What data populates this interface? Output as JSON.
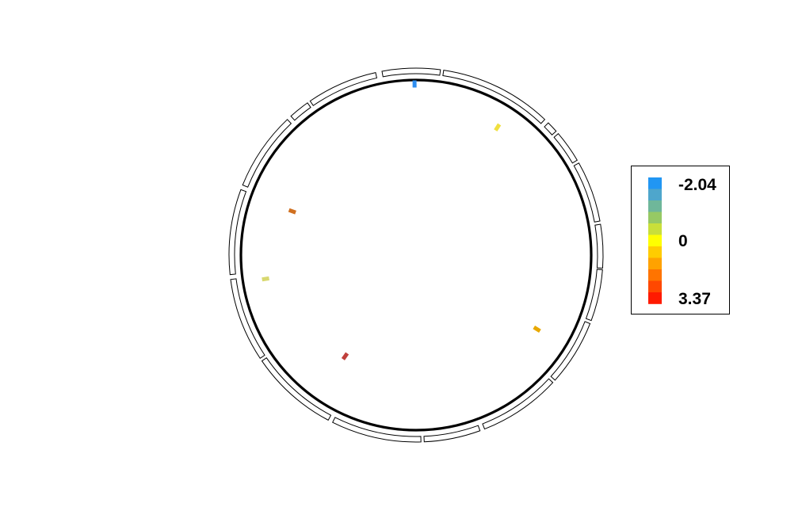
{
  "chart_data": {
    "type": "circos",
    "segments": [
      {
        "start_deg": -10.5,
        "end_deg": 7.5
      },
      {
        "start_deg": 8.5,
        "end_deg": 43.5
      },
      {
        "start_deg": 45.0,
        "end_deg": 48.5
      },
      {
        "start_deg": 49.5,
        "end_deg": 59.5
      },
      {
        "start_deg": 60.5,
        "end_deg": 79.5
      },
      {
        "start_deg": 80.5,
        "end_deg": 94.0
      },
      {
        "start_deg": 94.5,
        "end_deg": 110.5
      },
      {
        "start_deg": 111.5,
        "end_deg": 132.0
      },
      {
        "start_deg": 133.0,
        "end_deg": 158.5
      },
      {
        "start_deg": 160.0,
        "end_deg": 177.5
      },
      {
        "start_deg": 178.5,
        "end_deg": 206.5
      },
      {
        "start_deg": 208.0,
        "end_deg": 235.5
      },
      {
        "start_deg": 236.5,
        "end_deg": 262.5
      },
      {
        "start_deg": 264.0,
        "end_deg": 290.5
      },
      {
        "start_deg": 292.0,
        "end_deg": 316.5
      },
      {
        "start_deg": 318.0,
        "end_deg": 324.5
      },
      {
        "start_deg": 325.5,
        "end_deg": 347.5
      }
    ],
    "marks": [
      {
        "angle_deg": -0.5,
        "value": -2.04,
        "color": "#2e8ef0"
      },
      {
        "angle_deg": 121.5,
        "value": 1.3,
        "color": "#e8a800"
      },
      {
        "angle_deg": 215.0,
        "value": 3.37,
        "color": "#c0403c"
      },
      {
        "angle_deg": 289.5,
        "value": 2.5,
        "color": "#d07020"
      },
      {
        "angle_deg": 32.5,
        "value": 0.2,
        "color": "#f0e040"
      },
      {
        "angle_deg": 261.0,
        "value": 0.1,
        "color": "#d8d870"
      }
    ],
    "legend": {
      "min_label": "-2.04",
      "mid_label": "0",
      "max_label": "3.37",
      "colors": [
        "#2196f3",
        "#4ea6cc",
        "#6fb79a",
        "#96c964",
        "#c9df3a",
        "#ffff00",
        "#ffcc00",
        "#ffa200",
        "#ff7400",
        "#ff4800",
        "#ff1a00"
      ],
      "placement": "right"
    }
  }
}
